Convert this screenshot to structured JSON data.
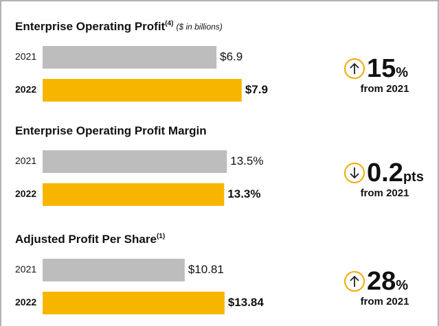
{
  "chart_data": [
    {
      "type": "bar",
      "orientation": "horizontal",
      "title": "Enterprise Operating Profit",
      "title_note": "(4)",
      "subtitle": "($ in billions)",
      "categories": [
        "2021",
        "2022"
      ],
      "values": [
        6.9,
        7.9
      ],
      "value_labels": [
        "$6.9",
        "$7.9"
      ],
      "colors": [
        "#bdbdbd",
        "#f7b500"
      ],
      "xlim": [
        0,
        8.45
      ],
      "change": {
        "direction": "up",
        "value": 15,
        "unit": "%",
        "note": "from 2021"
      }
    },
    {
      "type": "bar",
      "orientation": "horizontal",
      "title": "Enterprise Operating Profit Margin",
      "categories": [
        "2021",
        "2022"
      ],
      "values": [
        13.5,
        13.3
      ],
      "value_labels": [
        "13.5%",
        "13.3%"
      ],
      "colors": [
        "#bdbdbd",
        "#f7b500"
      ],
      "xlim": [
        0,
        15.6
      ],
      "change": {
        "direction": "down",
        "value": 0.2,
        "unit": "pts",
        "note": "from 2021"
      }
    },
    {
      "type": "bar",
      "orientation": "horizontal",
      "title": "Adjusted Profit Per Share",
      "title_note": "(1)",
      "categories": [
        "2021",
        "2022"
      ],
      "values": [
        10.81,
        13.84
      ],
      "value_labels": [
        "$10.81",
        "$13.84"
      ],
      "colors": [
        "#bdbdbd",
        "#f7b500"
      ],
      "xlim": [
        0,
        16.2
      ],
      "change": {
        "direction": "up",
        "value": 28,
        "unit": "%",
        "note": "from 2021"
      }
    }
  ]
}
